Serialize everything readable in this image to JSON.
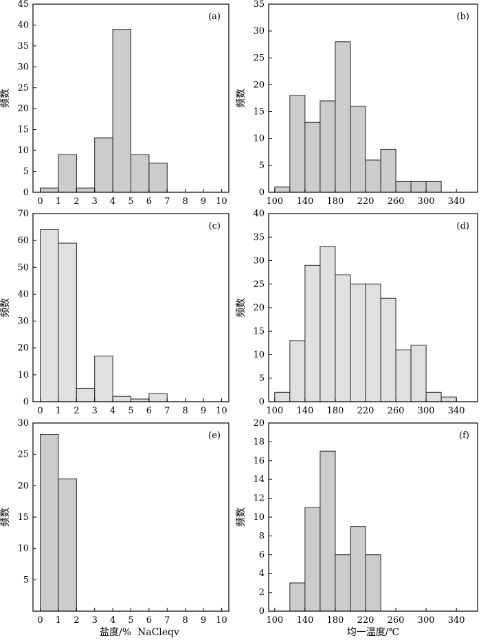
{
  "chart_data": [
    {
      "type": "bar",
      "panel_label": "(a)",
      "ylabel": "频数",
      "xlabel": "",
      "xlim": [
        -0.4,
        10.4
      ],
      "ylim": [
        0,
        45
      ],
      "xticks": [
        0,
        1,
        2,
        3,
        4,
        5,
        6,
        7,
        8,
        9,
        10
      ],
      "yticks": [
        0,
        5,
        10,
        15,
        20,
        25,
        30,
        35,
        40,
        45
      ],
      "bin_width": 1,
      "bins_start": [
        0,
        1,
        2,
        3,
        4,
        5,
        6
      ],
      "values": [
        1,
        9,
        1,
        13,
        39,
        9,
        7
      ],
      "bar_color": "#cccccc"
    },
    {
      "type": "bar",
      "panel_label": "(b)",
      "ylabel": "频数",
      "xlabel": "",
      "xlim": [
        92,
        368
      ],
      "ylim": [
        0,
        35
      ],
      "xticks": [
        100,
        140,
        180,
        220,
        260,
        300,
        340
      ],
      "yticks": [
        0,
        5,
        10,
        15,
        20,
        25,
        30,
        35
      ],
      "bin_width": 20,
      "bins_start": [
        100,
        120,
        140,
        160,
        180,
        200,
        220,
        240,
        260,
        280,
        300
      ],
      "values": [
        1,
        18,
        13,
        17,
        28,
        16,
        6,
        8,
        2,
        2,
        2
      ],
      "bar_color": "#cccccc"
    },
    {
      "type": "bar",
      "panel_label": "(c)",
      "ylabel": "频数",
      "xlabel": "",
      "xlim": [
        -0.4,
        10.4
      ],
      "ylim": [
        0,
        70
      ],
      "xticks": [
        0,
        1,
        2,
        3,
        4,
        5,
        6,
        7,
        8,
        9,
        10
      ],
      "yticks": [
        0,
        10,
        20,
        30,
        40,
        50,
        60,
        70
      ],
      "bin_width": 1,
      "bins_start": [
        0,
        1,
        2,
        3,
        4,
        5,
        6
      ],
      "values": [
        64,
        59,
        5,
        17,
        2,
        1,
        3
      ],
      "bar_color": "#e0e0e0"
    },
    {
      "type": "bar",
      "panel_label": "(d)",
      "ylabel": "频数",
      "xlabel": "",
      "xlim": [
        92,
        368
      ],
      "ylim": [
        0,
        40
      ],
      "xticks": [
        100,
        140,
        180,
        220,
        260,
        300,
        340
      ],
      "yticks": [
        0,
        5,
        10,
        15,
        20,
        25,
        30,
        35,
        40
      ],
      "bin_width": 20,
      "bins_start": [
        100,
        120,
        140,
        160,
        180,
        200,
        220,
        240,
        260,
        280,
        300,
        320
      ],
      "values": [
        2,
        13,
        29,
        33,
        27,
        25,
        25,
        22,
        11,
        12,
        2,
        1
      ],
      "bar_color": "#e0e0e0"
    },
    {
      "type": "bar",
      "panel_label": "(e)",
      "ylabel": "频数",
      "xlabel": "盐度/%  NaCleqv",
      "xlim": [
        -0.4,
        10.4
      ],
      "ylim": [
        0,
        30
      ],
      "xticks": [
        0,
        1,
        2,
        3,
        4,
        5,
        6,
        7,
        8,
        9,
        10
      ],
      "yticks": [
        5,
        10,
        15,
        20,
        25,
        30
      ],
      "bin_width": 1,
      "bins_start": [
        0,
        1
      ],
      "values": [
        28.2,
        21.1
      ],
      "bar_color": "#cccccc"
    },
    {
      "type": "bar",
      "panel_label": "(f)",
      "ylabel": "频数",
      "xlabel": "均一温度/℃",
      "xlim": [
        92,
        368
      ],
      "ylim": [
        0,
        20
      ],
      "xticks": [
        100,
        140,
        180,
        220,
        260,
        300,
        340
      ],
      "yticks": [
        0,
        2,
        4,
        6,
        8,
        10,
        12,
        14,
        16,
        18,
        20
      ],
      "bin_width": 20,
      "bins_start": [
        120,
        140,
        160,
        180,
        200,
        220
      ],
      "values": [
        3,
        11,
        17,
        6,
        9,
        6
      ],
      "bar_color": "#cccccc"
    }
  ]
}
